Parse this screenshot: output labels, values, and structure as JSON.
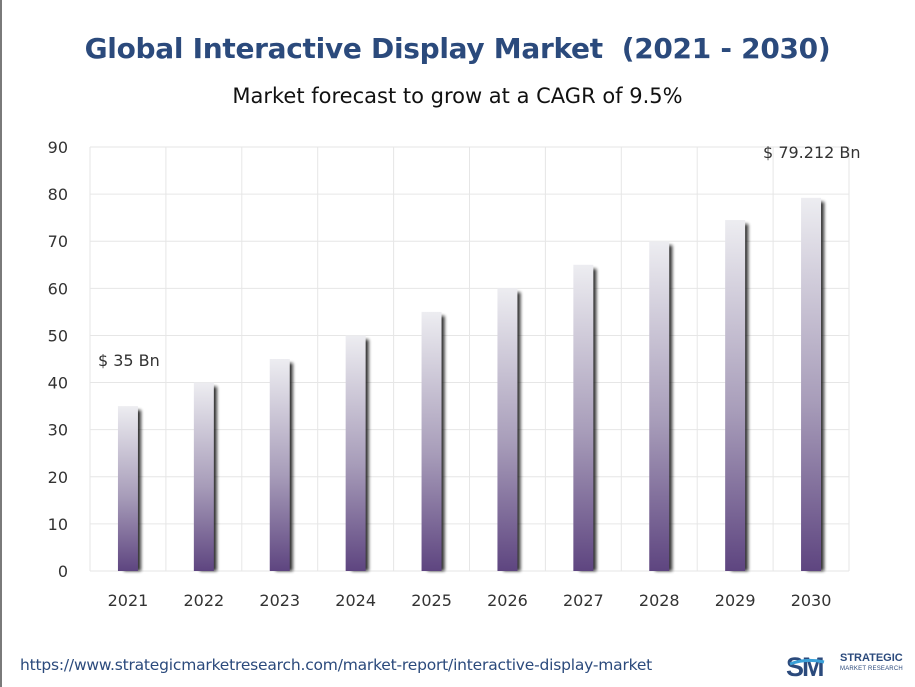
{
  "chart_data": {
    "type": "bar",
    "title": "Global Interactive Display Market  (2021 - 2030)",
    "subtitle": "Market forecast to grow at a CAGR of 9.5%",
    "categories": [
      "2021",
      "2022",
      "2023",
      "2024",
      "2025",
      "2026",
      "2027",
      "2028",
      "2029",
      "2030"
    ],
    "values": [
      35,
      40,
      45,
      50,
      55,
      60,
      65,
      70,
      74.5,
      79.212
    ],
    "ylim": [
      0,
      90
    ],
    "yticks": [
      0,
      10,
      20,
      30,
      40,
      50,
      60,
      70,
      80,
      90
    ],
    "xlabel": "",
    "ylabel": "",
    "grid": true,
    "legend": "none",
    "annotations": [
      {
        "category": "2021",
        "text": "$ 35 Bn"
      },
      {
        "category": "2030",
        "text": "$ 79.212 Bn"
      }
    ],
    "colors": {
      "bar_top": "#ededf1",
      "bar_bottom": "#5e4580",
      "grid": "#e6e6e6",
      "title": "#2b4a7c"
    }
  },
  "footer": {
    "url": "https://www.strategicmarketresearch.com/market-report/interactive-display-market",
    "logo_mark": "SM",
    "logo_line1": "STRATEGIC",
    "logo_line2": "MARKET RESEARCH"
  }
}
